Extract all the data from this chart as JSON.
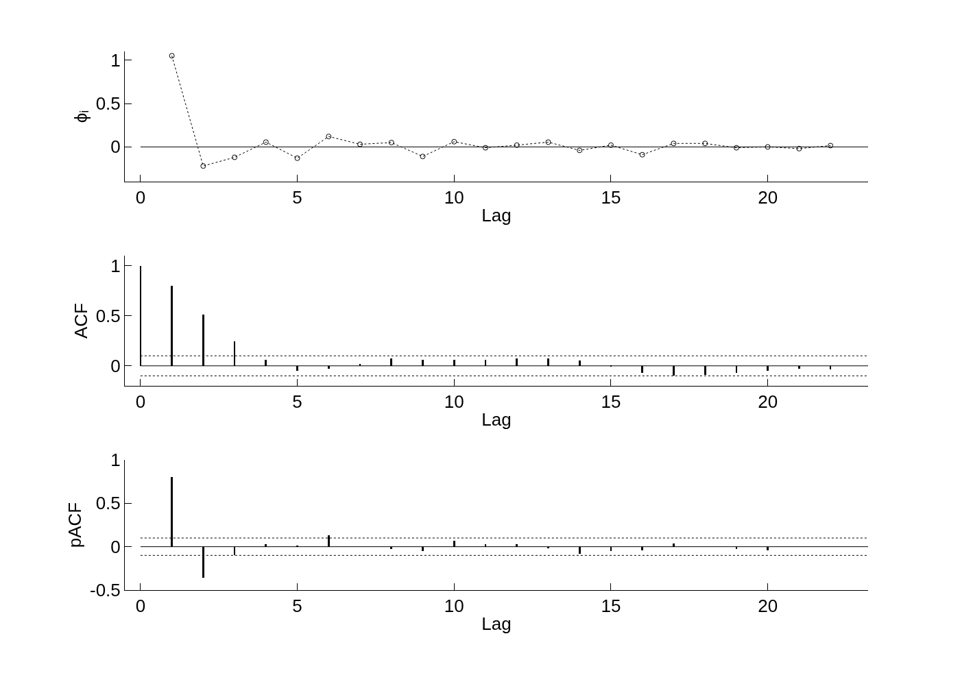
{
  "chart_data": [
    {
      "type": "line",
      "xlabel": "Lag",
      "ylabel": "ϕᵢ",
      "x": [
        1,
        2,
        3,
        4,
        5,
        6,
        7,
        8,
        9,
        10,
        11,
        12,
        13,
        14,
        15,
        16,
        17,
        18,
        19,
        20,
        21,
        22
      ],
      "series": [
        {
          "color": "#000000",
          "values": [
            1.05,
            -0.22,
            -0.12,
            0.055,
            -0.13,
            0.12,
            0.03,
            0.05,
            -0.11,
            0.06,
            -0.01,
            0.02,
            0.055,
            -0.04,
            0.02,
            -0.09,
            0.04,
            0.04,
            -0.01,
            0,
            -0.02,
            0.015
          ]
        }
      ],
      "marker": "circle",
      "line_style": "dotted",
      "xlim": [
        -0.5,
        23.2
      ],
      "xticks": [
        0,
        5,
        10,
        15,
        20
      ],
      "ylim": [
        -0.4,
        1.1
      ],
      "yticks": [
        0,
        0.5,
        1
      ],
      "ref_lines": [
        {
          "axis": "y",
          "value": 0,
          "color": "#000000",
          "line_style": "solid"
        }
      ]
    },
    {
      "type": "bar",
      "xlabel": "Lag",
      "ylabel": "ACF",
      "x": [
        0,
        1,
        2,
        3,
        4,
        5,
        6,
        7,
        8,
        9,
        10,
        11,
        12,
        13,
        14,
        15,
        16,
        17,
        18,
        19,
        20,
        21,
        22
      ],
      "series": [
        {
          "color": "#000000",
          "values": [
            1,
            0.8,
            0.51,
            0.245,
            0.06,
            -0.05,
            -0.03,
            0.02,
            0.075,
            0.06,
            0.06,
            0.06,
            0.075,
            0.075,
            0.05,
            -0.005,
            -0.07,
            -0.1,
            -0.09,
            -0.07,
            -0.05,
            -0.03,
            -0.035
          ]
        }
      ],
      "xlim": [
        -0.5,
        23.2
      ],
      "xticks": [
        0,
        5,
        10,
        15,
        20
      ],
      "ylim": [
        -0.2,
        1.1
      ],
      "yticks": [
        0,
        0.5,
        1
      ],
      "ref_lines": [
        {
          "axis": "y",
          "value": 0,
          "color": "#000000",
          "line_style": "solid"
        },
        {
          "axis": "y",
          "value": 0.1,
          "color": "#000000",
          "line_style": "dotted"
        },
        {
          "axis": "y",
          "value": -0.1,
          "color": "#000000",
          "line_style": "dotted"
        }
      ]
    },
    {
      "type": "bar",
      "xlabel": "Lag",
      "ylabel": "pACF",
      "x": [
        1,
        2,
        3,
        4,
        5,
        6,
        7,
        8,
        9,
        10,
        11,
        12,
        13,
        14,
        15,
        16,
        17,
        18,
        19,
        20
      ],
      "series": [
        {
          "color": "#000000",
          "values": [
            0.8,
            -0.36,
            -0.1,
            0.03,
            0.01,
            0.13,
            0,
            -0.03,
            -0.05,
            0.07,
            0.03,
            0.03,
            -0.02,
            -0.08,
            -0.05,
            -0.04,
            0.04,
            null,
            -0.03,
            -0.04
          ]
        }
      ],
      "xlim": [
        -0.5,
        23.2
      ],
      "xticks": [
        0,
        5,
        10,
        15,
        20
      ],
      "ylim": [
        -0.5,
        1
      ],
      "yticks": [
        -0.5,
        0,
        0.5,
        1
      ],
      "ref_lines": [
        {
          "axis": "y",
          "value": 0,
          "color": "#000000",
          "line_style": "solid"
        },
        {
          "axis": "y",
          "value": 0.1,
          "color": "#000000",
          "line_style": "dotted"
        },
        {
          "axis": "y",
          "value": -0.1,
          "color": "#000000",
          "line_style": "dotted"
        }
      ]
    }
  ]
}
